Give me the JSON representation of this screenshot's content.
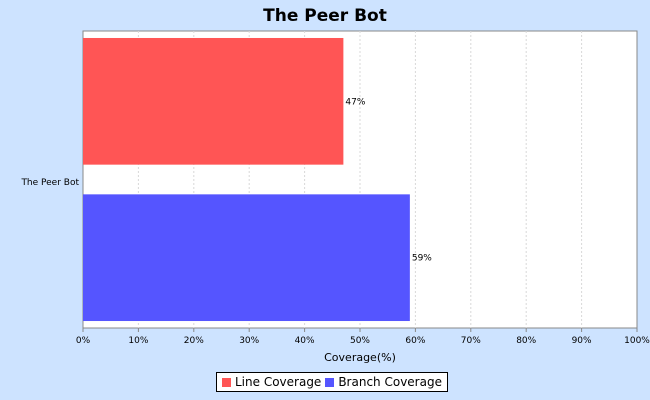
{
  "chart_data": {
    "type": "bar",
    "orientation": "horizontal",
    "title": "The Peer Bot",
    "categories": [
      "The Peer Bot"
    ],
    "series": [
      {
        "name": "Line Coverage",
        "values": [
          47
        ],
        "color": "#ff5555",
        "label": "47%"
      },
      {
        "name": "Branch Coverage",
        "values": [
          59
        ],
        "color": "#5555ff",
        "label": "59%"
      }
    ],
    "xlabel": "Coverage(%)",
    "ylabel": "",
    "xlim": [
      0,
      100
    ],
    "xticks": [
      0,
      10,
      20,
      30,
      40,
      50,
      60,
      70,
      80,
      90,
      100
    ],
    "xtick_labels": [
      "0%",
      "10%",
      "20%",
      "30%",
      "40%",
      "50%",
      "60%",
      "70%",
      "80%",
      "90%",
      "100%"
    ],
    "grid": "vertical dashed",
    "legend_position": "bottom"
  },
  "colors": {
    "background": "#cde3ff",
    "plot_background": "#ffffff"
  }
}
